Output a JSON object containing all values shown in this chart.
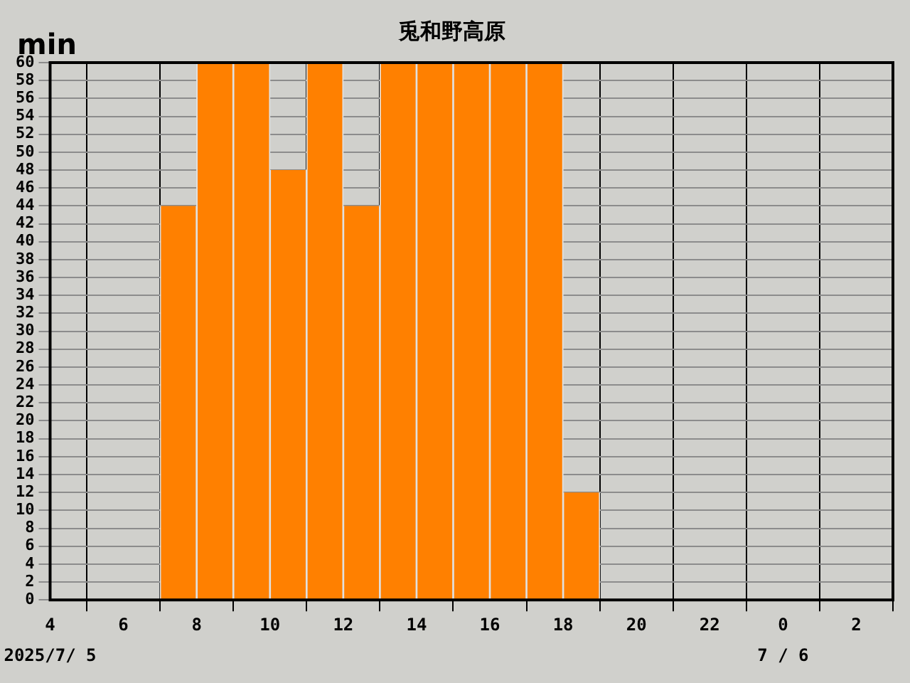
{
  "chart_data": {
    "type": "histogram",
    "title": "兎和野高原",
    "ylabel": "min",
    "bins": [
      "2025-07-05T07:00",
      "2025-07-05T08:00",
      "2025-07-05T09:00",
      "2025-07-05T10:00",
      "2025-07-05T11:00",
      "2025-07-05T12:00",
      "2025-07-05T13:00",
      "2025-07-05T14:00",
      "2025-07-05T15:00",
      "2025-07-05T16:00",
      "2025-07-05T17:00",
      "2025-07-05T18:00",
      "2025-07-05T19:00"
    ],
    "values": [
      44,
      60,
      60,
      48,
      60,
      44,
      60,
      60,
      60,
      60,
      60,
      12
    ],
    "color": "#ff8000",
    "xlim": [
      "2025-07-05T04:00",
      "2025-07-06T03:00"
    ],
    "xticks": [
      {
        "value": "2025-07-05T04:00",
        "label": "4"
      },
      {
        "value": "2025-07-05T06:00",
        "label": "6"
      },
      {
        "value": "2025-07-05T08:00",
        "label": "8"
      },
      {
        "value": "2025-07-05T10:00",
        "label": "10"
      },
      {
        "value": "2025-07-05T12:00",
        "label": "12"
      },
      {
        "value": "2025-07-05T14:00",
        "label": "14"
      },
      {
        "value": "2025-07-05T16:00",
        "label": "16"
      },
      {
        "value": "2025-07-05T18:00",
        "label": "18"
      },
      {
        "value": "2025-07-05T20:00",
        "label": "20"
      },
      {
        "value": "2025-07-05T22:00",
        "label": "22"
      },
      {
        "value": "2025-07-06T00:00",
        "label": "0"
      },
      {
        "value": "2025-07-06T02:00",
        "label": "2"
      }
    ],
    "ylim": [
      0,
      60
    ],
    "yticks": [
      0,
      2,
      4,
      6,
      8,
      10,
      12,
      14,
      16,
      18,
      20,
      22,
      24,
      26,
      28,
      30,
      32,
      34,
      36,
      38,
      40,
      42,
      44,
      46,
      48,
      50,
      52,
      54,
      56,
      58,
      60
    ],
    "grid": true,
    "annotations": [
      "2025/7/ 5",
      "7 / 6"
    ]
  }
}
